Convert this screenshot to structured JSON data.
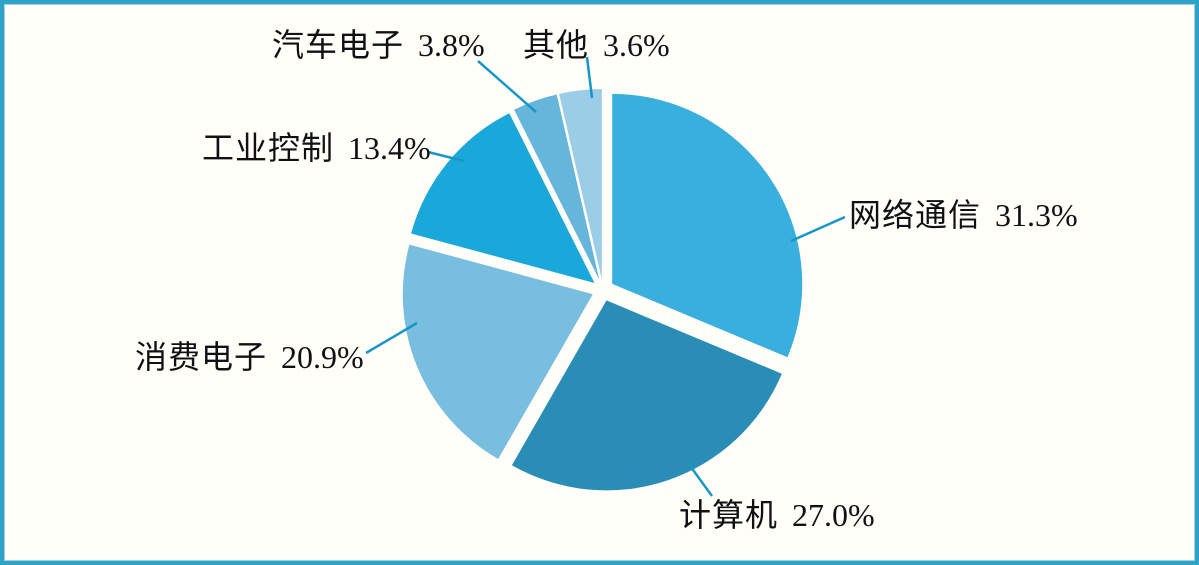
{
  "chart_data": {
    "type": "pie",
    "start_angle": "top",
    "direction": "clockwise",
    "exploded": true,
    "total": 100,
    "slices": [
      {
        "name": "网络通信",
        "value": 31.3,
        "pct": "31.3%",
        "color": "#38afdd"
      },
      {
        "name": "计算机",
        "value": 27.0,
        "pct": "27.0%",
        "color": "#2a8db6"
      },
      {
        "name": "消费电子",
        "value": 20.9,
        "pct": "20.9%",
        "color": "#79bede"
      },
      {
        "name": "工业控制",
        "value": 13.4,
        "pct": "13.4%",
        "color": "#1aa7da"
      },
      {
        "name": "汽车电子",
        "value": 3.8,
        "pct": "3.8%",
        "color": "#66b5db"
      },
      {
        "name": "其他",
        "value": 3.6,
        "pct": "3.6%",
        "color": "#9ccde7"
      }
    ],
    "leader_line_color": "#1797c5",
    "background_color": "#fffef8",
    "frame_border_color": "#2fa3c6",
    "text_color": "#111111"
  }
}
